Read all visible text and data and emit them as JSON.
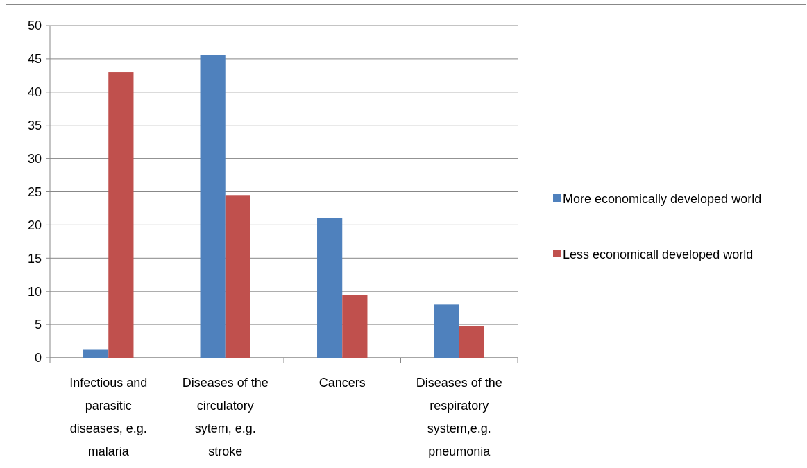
{
  "chart_data": {
    "type": "bar",
    "categories": [
      "Infectious and parasitic diseases, e.g. malaria",
      "Diseases of the circulatory sytem, e.g. stroke",
      "Cancers",
      "Diseases of the respiratory system,e.g. pneumonia"
    ],
    "series": [
      {
        "name": "More economically developed world",
        "color": "#4f81bd",
        "values": [
          1.2,
          45.6,
          21.0,
          8.0
        ]
      },
      {
        "name": "Less economicall developed world",
        "color": "#c0504d",
        "values": [
          43.0,
          24.5,
          9.4,
          4.8
        ]
      }
    ],
    "ylim": [
      0,
      50
    ],
    "yticks": [
      0,
      5,
      10,
      15,
      20,
      25,
      30,
      35,
      40,
      45,
      50
    ],
    "grid": "y",
    "legend": "right"
  }
}
